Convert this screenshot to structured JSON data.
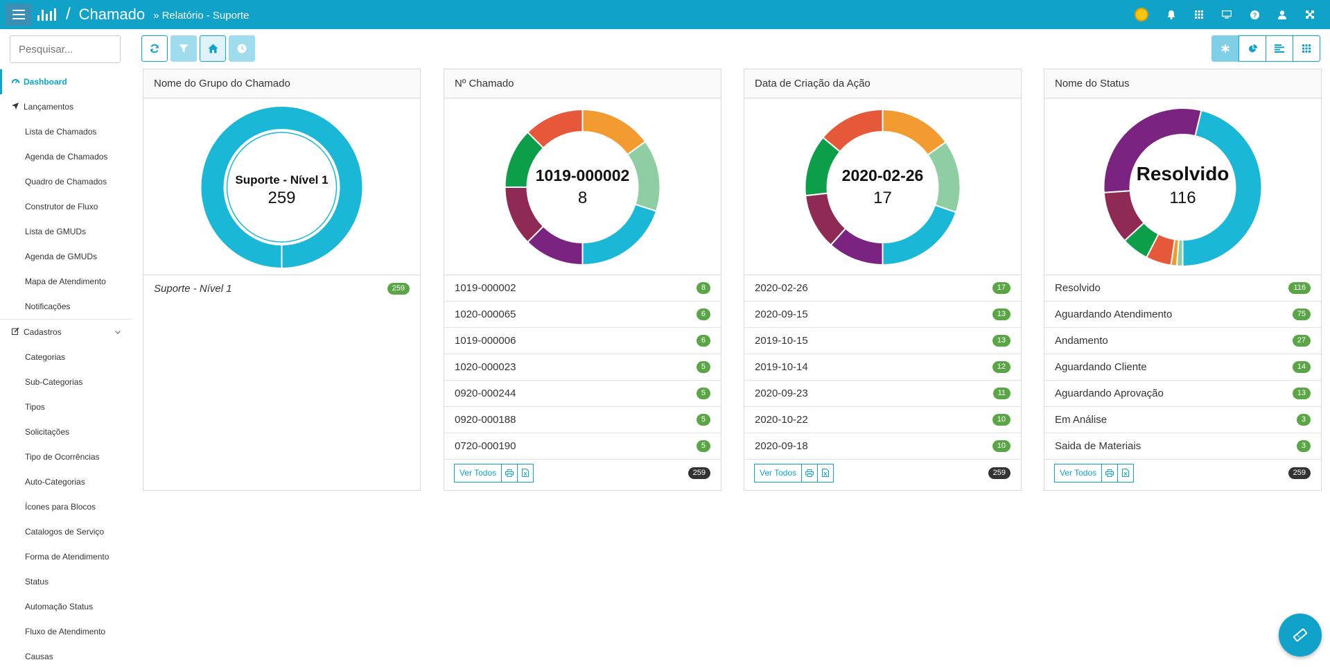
{
  "header": {
    "app_title": "Chamado",
    "separator": "/",
    "breadcrumb": "» Relatório - Suporte",
    "icons": [
      "coin-icon",
      "bell-icon",
      "grid-icon",
      "monitor-icon",
      "help-icon",
      "user-icon",
      "expand-icon"
    ],
    "brand_color": "#10a2c9"
  },
  "sidebar": {
    "search_placeholder": "Pesquisar...",
    "dashboard": "Dashboard",
    "lancamentos": "Lançamentos",
    "lancamentos_items": [
      "Lista de Chamados",
      "Agenda de Chamados",
      "Quadro de Chamados",
      "Construtor de Fluxo",
      "Lista de GMUDs",
      "Agenda de GMUDs",
      "Mapa de Atendimento",
      "Notificações"
    ],
    "cadastros": "Cadastros",
    "cadastros_items": [
      "Categorias",
      "Sub-Categorias",
      "Tipos",
      "Solicitações",
      "Tipo de Ocorrências",
      "Auto-Categorias",
      "Ícones para Blocos",
      "Catalogos de Serviço",
      "Forma de Atendimento",
      "Status",
      "Automação Status",
      "Fluxo de Atendimento",
      "Causas"
    ]
  },
  "toolbar": {
    "icons": [
      "refresh-icon",
      "filter-icon",
      "home-icon",
      "clock-icon"
    ],
    "view_icons": [
      "asterisk-icon",
      "pie-icon",
      "bars-icon",
      "grid-icon"
    ]
  },
  "footer_labels": {
    "ver_todos": "Ver Todos"
  },
  "panels": [
    {
      "title": "Nome do Grupo do Chamado",
      "center_label": "Suporte - Nível 1",
      "center_count": "259",
      "rows": [
        {
          "label": "Suporte - Nível 1",
          "count": "259"
        }
      ],
      "total": null
    },
    {
      "title": "Nº Chamado",
      "center_label": "1019-000002",
      "center_count": "8",
      "rows": [
        {
          "label": "1019-000002",
          "count": "8"
        },
        {
          "label": "1020-000065",
          "count": "6"
        },
        {
          "label": "1019-000006",
          "count": "6"
        },
        {
          "label": "1020-000023",
          "count": "5"
        },
        {
          "label": "0920-000244",
          "count": "5"
        },
        {
          "label": "0920-000188",
          "count": "5"
        },
        {
          "label": "0720-000190",
          "count": "5"
        }
      ],
      "total": "259"
    },
    {
      "title": "Data de Criação da Ação",
      "center_label": "2020-02-26",
      "center_count": "17",
      "rows": [
        {
          "label": "2020-02-26",
          "count": "17"
        },
        {
          "label": "2020-09-15",
          "count": "13"
        },
        {
          "label": "2019-10-15",
          "count": "13"
        },
        {
          "label": "2019-10-14",
          "count": "12"
        },
        {
          "label": "2020-09-23",
          "count": "11"
        },
        {
          "label": "2020-10-22",
          "count": "10"
        },
        {
          "label": "2020-09-18",
          "count": "10"
        }
      ],
      "total": "259"
    },
    {
      "title": "Nome do Status",
      "center_label": "Resolvido",
      "center_count": "116",
      "rows": [
        {
          "label": "Resolvido",
          "count": "116"
        },
        {
          "label": "Aguardando Atendimento",
          "count": "75"
        },
        {
          "label": "Andamento",
          "count": "27"
        },
        {
          "label": "Aguardando Cliente",
          "count": "14"
        },
        {
          "label": "Aguardando Aprovação",
          "count": "13"
        },
        {
          "label": "Em Análise",
          "count": "3"
        },
        {
          "label": "Saida de Materiais",
          "count": "3"
        }
      ],
      "total": "259"
    }
  ],
  "chart_data": [
    {
      "type": "pie",
      "categories": [
        "Suporte - Nível 1"
      ],
      "values": [
        259
      ],
      "colors": [
        "#1ab8d6"
      ]
    },
    {
      "type": "pie",
      "categories": [
        "1019-000002",
        "1020-000065",
        "1019-000006",
        "1020-000023",
        "0920-000244",
        "0920-000188",
        "0720-000190"
      ],
      "values": [
        8,
        6,
        6,
        5,
        5,
        5,
        5
      ],
      "colors": [
        "#1ab8d6",
        "#8fcea3",
        "#f29b30",
        "#e5593a",
        "#0c9e48",
        "#8e2a54",
        "#7a2380"
      ]
    },
    {
      "type": "pie",
      "categories": [
        "2020-02-26",
        "2020-09-15",
        "2019-10-15",
        "2019-10-14",
        "2020-09-23",
        "2020-10-22",
        "2020-09-18"
      ],
      "values": [
        17,
        13,
        13,
        12,
        11,
        10,
        10
      ],
      "colors": [
        "#1ab8d6",
        "#8fcea3",
        "#f29b30",
        "#e5593a",
        "#0c9e48",
        "#8e2a54",
        "#7a2380"
      ]
    },
    {
      "type": "pie",
      "categories": [
        "Resolvido",
        "Aguardando Atendimento",
        "Andamento",
        "Aguardando Cliente",
        "Aguardando Aprovação",
        "Em Análise",
        "Saida de Materiais"
      ],
      "values": [
        116,
        75,
        27,
        14,
        13,
        3,
        3
      ],
      "colors": [
        "#1ab8d6",
        "#7a2380",
        "#8e2a54",
        "#0c9e48",
        "#e5593a",
        "#f29b30",
        "#8fcea3"
      ]
    }
  ],
  "fab": {
    "icon": "ticket-icon"
  }
}
